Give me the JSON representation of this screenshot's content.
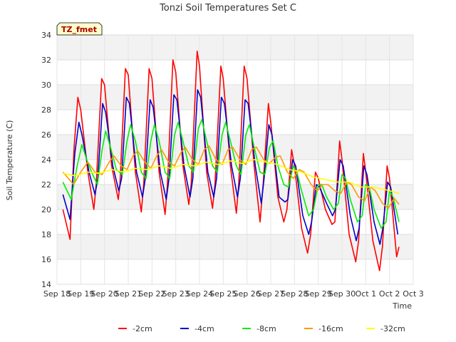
{
  "chart_data": {
    "type": "line",
    "title": "Tonzi Soil Temperatures Set C",
    "xlabel": "Time",
    "ylabel": "Soil Temperature (C)",
    "badge": "TZ_fmet",
    "ylim": [
      14,
      34
    ],
    "yticks": [
      14,
      16,
      18,
      20,
      22,
      24,
      26,
      28,
      30,
      32,
      34
    ],
    "xlim": [
      0,
      15
    ],
    "xticks": [
      {
        "v": 0,
        "label": "Sep 18"
      },
      {
        "v": 1,
        "label": "Sep 19"
      },
      {
        "v": 2,
        "label": "Sep 20"
      },
      {
        "v": 3,
        "label": "Sep 21"
      },
      {
        "v": 4,
        "label": "Sep 22"
      },
      {
        "v": 5,
        "label": "Sep 23"
      },
      {
        "v": 6,
        "label": "Sep 24"
      },
      {
        "v": 7,
        "label": "Sep 25"
      },
      {
        "v": 8,
        "label": "Sep 26"
      },
      {
        "v": 9,
        "label": "Sep 27"
      },
      {
        "v": 10,
        "label": "Sep 28"
      },
      {
        "v": 11,
        "label": "Sep 29"
      },
      {
        "v": 12,
        "label": "Sep 30"
      },
      {
        "v": 13,
        "label": "Oct 1"
      },
      {
        "v": 14,
        "label": "Oct 2"
      },
      {
        "v": 15,
        "label": "Oct 3"
      }
    ],
    "grid": true,
    "legend_position": "bottom",
    "series": [
      {
        "name": "-2cm",
        "color": "#ff0000",
        "points": [
          [
            0.25,
            20.0
          ],
          [
            0.55,
            17.6
          ],
          [
            0.72,
            25.0
          ],
          [
            0.88,
            29.0
          ],
          [
            1.0,
            28.0
          ],
          [
            1.3,
            23.0
          ],
          [
            1.55,
            20.0
          ],
          [
            1.65,
            22.0
          ],
          [
            1.88,
            30.5
          ],
          [
            2.0,
            30.0
          ],
          [
            2.3,
            23.5
          ],
          [
            2.58,
            20.8
          ],
          [
            2.65,
            22.0
          ],
          [
            2.88,
            31.3
          ],
          [
            3.0,
            30.8
          ],
          [
            3.3,
            23.0
          ],
          [
            3.55,
            19.8
          ],
          [
            3.65,
            22.0
          ],
          [
            3.88,
            31.3
          ],
          [
            4.0,
            30.5
          ],
          [
            4.3,
            23.0
          ],
          [
            4.55,
            19.6
          ],
          [
            4.65,
            22.0
          ],
          [
            4.88,
            32.0
          ],
          [
            5.0,
            31.0
          ],
          [
            5.3,
            23.5
          ],
          [
            5.55,
            20.4
          ],
          [
            5.65,
            22.0
          ],
          [
            5.9,
            32.7
          ],
          [
            6.0,
            31.5
          ],
          [
            6.3,
            23.0
          ],
          [
            6.55,
            20.1
          ],
          [
            6.65,
            22.0
          ],
          [
            6.9,
            31.5
          ],
          [
            7.0,
            30.5
          ],
          [
            7.3,
            23.5
          ],
          [
            7.55,
            19.7
          ],
          [
            7.65,
            22.0
          ],
          [
            7.88,
            31.5
          ],
          [
            8.0,
            30.5
          ],
          [
            8.3,
            23.5
          ],
          [
            8.55,
            19.0
          ],
          [
            8.68,
            22.0
          ],
          [
            8.9,
            28.5
          ],
          [
            9.0,
            27.0
          ],
          [
            9.3,
            21.0
          ],
          [
            9.55,
            19.0
          ],
          [
            9.68,
            20.0
          ],
          [
            9.88,
            24.8
          ],
          [
            10.0,
            23.5
          ],
          [
            10.3,
            18.5
          ],
          [
            10.55,
            16.5
          ],
          [
            10.68,
            18.0
          ],
          [
            10.88,
            23.0
          ],
          [
            11.0,
            22.5
          ],
          [
            11.3,
            20.0
          ],
          [
            11.58,
            18.8
          ],
          [
            11.7,
            19.0
          ],
          [
            11.9,
            25.5
          ],
          [
            12.0,
            24.0
          ],
          [
            12.3,
            18.0
          ],
          [
            12.58,
            15.8
          ],
          [
            12.7,
            17.5
          ],
          [
            12.9,
            24.5
          ],
          [
            13.0,
            23.0
          ],
          [
            13.3,
            17.5
          ],
          [
            13.58,
            15.1
          ],
          [
            13.7,
            17.0
          ],
          [
            13.9,
            23.5
          ],
          [
            14.0,
            22.5
          ],
          [
            14.3,
            16.2
          ],
          [
            14.4,
            17.0
          ]
        ]
      },
      {
        "name": "-4cm",
        "color": "#0000cc",
        "points": [
          [
            0.25,
            21.2
          ],
          [
            0.55,
            19.2
          ],
          [
            0.75,
            24.5
          ],
          [
            0.92,
            27.0
          ],
          [
            1.05,
            26.0
          ],
          [
            1.35,
            23.0
          ],
          [
            1.6,
            21.2
          ],
          [
            1.72,
            22.5
          ],
          [
            1.92,
            28.5
          ],
          [
            2.05,
            27.8
          ],
          [
            2.35,
            23.5
          ],
          [
            2.6,
            21.5
          ],
          [
            2.72,
            22.5
          ],
          [
            2.92,
            29.0
          ],
          [
            3.05,
            28.5
          ],
          [
            3.35,
            23.0
          ],
          [
            3.6,
            21.0
          ],
          [
            3.72,
            22.5
          ],
          [
            3.92,
            28.8
          ],
          [
            4.05,
            28.2
          ],
          [
            4.35,
            23.0
          ],
          [
            4.6,
            20.8
          ],
          [
            4.72,
            22.5
          ],
          [
            4.92,
            29.2
          ],
          [
            5.05,
            28.8
          ],
          [
            5.35,
            23.5
          ],
          [
            5.6,
            21.0
          ],
          [
            5.72,
            22.5
          ],
          [
            5.92,
            29.6
          ],
          [
            6.05,
            29.0
          ],
          [
            6.35,
            23.0
          ],
          [
            6.6,
            21.0
          ],
          [
            6.72,
            22.5
          ],
          [
            6.92,
            29.0
          ],
          [
            7.05,
            28.5
          ],
          [
            7.35,
            23.5
          ],
          [
            7.6,
            21.0
          ],
          [
            7.72,
            22.5
          ],
          [
            7.92,
            28.8
          ],
          [
            8.05,
            28.5
          ],
          [
            8.35,
            23.5
          ],
          [
            8.6,
            20.5
          ],
          [
            8.72,
            22.5
          ],
          [
            8.92,
            26.8
          ],
          [
            9.05,
            26.0
          ],
          [
            9.35,
            21.0
          ],
          [
            9.6,
            20.6
          ],
          [
            9.72,
            20.8
          ],
          [
            9.92,
            24.0
          ],
          [
            10.05,
            23.5
          ],
          [
            10.35,
            19.5
          ],
          [
            10.6,
            18.0
          ],
          [
            10.72,
            19.0
          ],
          [
            10.92,
            22.0
          ],
          [
            11.05,
            21.8
          ],
          [
            11.35,
            20.5
          ],
          [
            11.6,
            19.5
          ],
          [
            11.72,
            20.0
          ],
          [
            11.92,
            24.0
          ],
          [
            12.05,
            23.5
          ],
          [
            12.35,
            19.5
          ],
          [
            12.6,
            17.5
          ],
          [
            12.72,
            18.5
          ],
          [
            12.92,
            23.5
          ],
          [
            13.05,
            22.8
          ],
          [
            13.35,
            19.0
          ],
          [
            13.6,
            17.2
          ],
          [
            13.72,
            18.5
          ],
          [
            13.92,
            22.2
          ],
          [
            14.05,
            21.8
          ],
          [
            14.35,
            18.0
          ]
        ]
      },
      {
        "name": "-8cm",
        "color": "#00ee00",
        "points": [
          [
            0.25,
            22.2
          ],
          [
            0.6,
            20.8
          ],
          [
            0.85,
            23.5
          ],
          [
            1.05,
            25.2
          ],
          [
            1.25,
            24.0
          ],
          [
            1.5,
            22.8
          ],
          [
            1.7,
            22.0
          ],
          [
            1.9,
            24.8
          ],
          [
            2.05,
            26.3
          ],
          [
            2.25,
            25.0
          ],
          [
            2.5,
            23.2
          ],
          [
            2.75,
            22.8
          ],
          [
            2.95,
            25.5
          ],
          [
            3.1,
            26.8
          ],
          [
            3.3,
            25.5
          ],
          [
            3.55,
            23.0
          ],
          [
            3.75,
            22.5
          ],
          [
            3.95,
            25.5
          ],
          [
            4.1,
            26.8
          ],
          [
            4.3,
            25.5
          ],
          [
            4.55,
            23.0
          ],
          [
            4.75,
            22.5
          ],
          [
            4.95,
            26.0
          ],
          [
            5.1,
            27.0
          ],
          [
            5.3,
            25.5
          ],
          [
            5.55,
            23.5
          ],
          [
            5.75,
            23.0
          ],
          [
            5.95,
            26.5
          ],
          [
            6.1,
            27.2
          ],
          [
            6.3,
            25.5
          ],
          [
            6.55,
            23.5
          ],
          [
            6.75,
            23.0
          ],
          [
            6.95,
            26.0
          ],
          [
            7.1,
            27.0
          ],
          [
            7.3,
            25.5
          ],
          [
            7.55,
            23.5
          ],
          [
            7.75,
            22.8
          ],
          [
            7.95,
            26.0
          ],
          [
            8.1,
            26.8
          ],
          [
            8.3,
            25.0
          ],
          [
            8.55,
            23.0
          ],
          [
            8.75,
            22.8
          ],
          [
            8.95,
            25.0
          ],
          [
            9.1,
            25.5
          ],
          [
            9.3,
            23.5
          ],
          [
            9.55,
            22.0
          ],
          [
            9.75,
            21.8
          ],
          [
            9.95,
            23.5
          ],
          [
            10.1,
            23.0
          ],
          [
            10.3,
            21.5
          ],
          [
            10.6,
            19.5
          ],
          [
            10.8,
            20.0
          ],
          [
            11.0,
            22.0
          ],
          [
            11.15,
            22.0
          ],
          [
            11.35,
            21.0
          ],
          [
            11.65,
            20.0
          ],
          [
            11.85,
            20.5
          ],
          [
            12.0,
            22.8
          ],
          [
            12.15,
            22.5
          ],
          [
            12.35,
            20.8
          ],
          [
            12.65,
            19.0
          ],
          [
            12.85,
            19.5
          ],
          [
            13.0,
            22.0
          ],
          [
            13.15,
            21.8
          ],
          [
            13.35,
            20.0
          ],
          [
            13.65,
            18.5
          ],
          [
            13.85,
            19.0
          ],
          [
            14.0,
            21.5
          ],
          [
            14.15,
            21.0
          ],
          [
            14.4,
            19.0
          ]
        ]
      },
      {
        "name": "-16cm",
        "color": "#ff9900",
        "points": [
          [
            0.25,
            23.0
          ],
          [
            0.7,
            22.0
          ],
          [
            1.0,
            23.0
          ],
          [
            1.3,
            23.8
          ],
          [
            1.6,
            23.0
          ],
          [
            1.9,
            22.8
          ],
          [
            2.2,
            23.8
          ],
          [
            2.4,
            24.3
          ],
          [
            2.7,
            23.5
          ],
          [
            2.95,
            23.2
          ],
          [
            3.2,
            24.3
          ],
          [
            3.4,
            24.7
          ],
          [
            3.7,
            23.8
          ],
          [
            3.95,
            23.3
          ],
          [
            4.2,
            24.3
          ],
          [
            4.4,
            24.8
          ],
          [
            4.7,
            23.8
          ],
          [
            4.95,
            23.5
          ],
          [
            5.2,
            24.5
          ],
          [
            5.4,
            25.0
          ],
          [
            5.7,
            24.0
          ],
          [
            5.95,
            23.6
          ],
          [
            6.2,
            24.8
          ],
          [
            6.4,
            25.1
          ],
          [
            6.7,
            24.0
          ],
          [
            6.95,
            23.6
          ],
          [
            7.2,
            24.8
          ],
          [
            7.4,
            25.0
          ],
          [
            7.7,
            24.0
          ],
          [
            7.95,
            23.6
          ],
          [
            8.2,
            24.8
          ],
          [
            8.4,
            25.0
          ],
          [
            8.7,
            24.0
          ],
          [
            8.95,
            23.7
          ],
          [
            9.2,
            24.2
          ],
          [
            9.4,
            24.3
          ],
          [
            9.7,
            23.0
          ],
          [
            9.95,
            22.5
          ],
          [
            10.2,
            23.2
          ],
          [
            10.4,
            23.0
          ],
          [
            10.7,
            22.0
          ],
          [
            10.95,
            21.5
          ],
          [
            11.2,
            22.0
          ],
          [
            11.4,
            22.0
          ],
          [
            11.7,
            21.5
          ],
          [
            11.95,
            21.3
          ],
          [
            12.2,
            22.2
          ],
          [
            12.4,
            22.0
          ],
          [
            12.7,
            21.0
          ],
          [
            12.95,
            20.7
          ],
          [
            13.2,
            21.8
          ],
          [
            13.4,
            21.5
          ],
          [
            13.7,
            20.5
          ],
          [
            13.95,
            20.1
          ],
          [
            14.2,
            20.9
          ],
          [
            14.4,
            20.4
          ]
        ]
      },
      {
        "name": "-32cm",
        "color": "#ffff00",
        "points": [
          [
            0.25,
            22.9
          ],
          [
            0.8,
            22.7
          ],
          [
            1.3,
            23.0
          ],
          [
            1.8,
            22.9
          ],
          [
            2.3,
            23.2
          ],
          [
            2.8,
            23.0
          ],
          [
            3.3,
            23.3
          ],
          [
            3.8,
            23.2
          ],
          [
            4.3,
            23.5
          ],
          [
            4.8,
            23.3
          ],
          [
            5.3,
            23.6
          ],
          [
            5.8,
            23.5
          ],
          [
            6.3,
            23.8
          ],
          [
            6.8,
            23.6
          ],
          [
            7.3,
            23.9
          ],
          [
            7.8,
            23.7
          ],
          [
            8.3,
            24.0
          ],
          [
            8.8,
            23.8
          ],
          [
            9.3,
            23.6
          ],
          [
            9.8,
            23.2
          ],
          [
            10.3,
            23.0
          ],
          [
            10.8,
            22.6
          ],
          [
            11.3,
            22.4
          ],
          [
            11.8,
            22.2
          ],
          [
            12.3,
            22.2
          ],
          [
            12.8,
            21.8
          ],
          [
            13.3,
            21.8
          ],
          [
            13.8,
            21.6
          ],
          [
            14.4,
            21.3
          ]
        ]
      }
    ]
  }
}
